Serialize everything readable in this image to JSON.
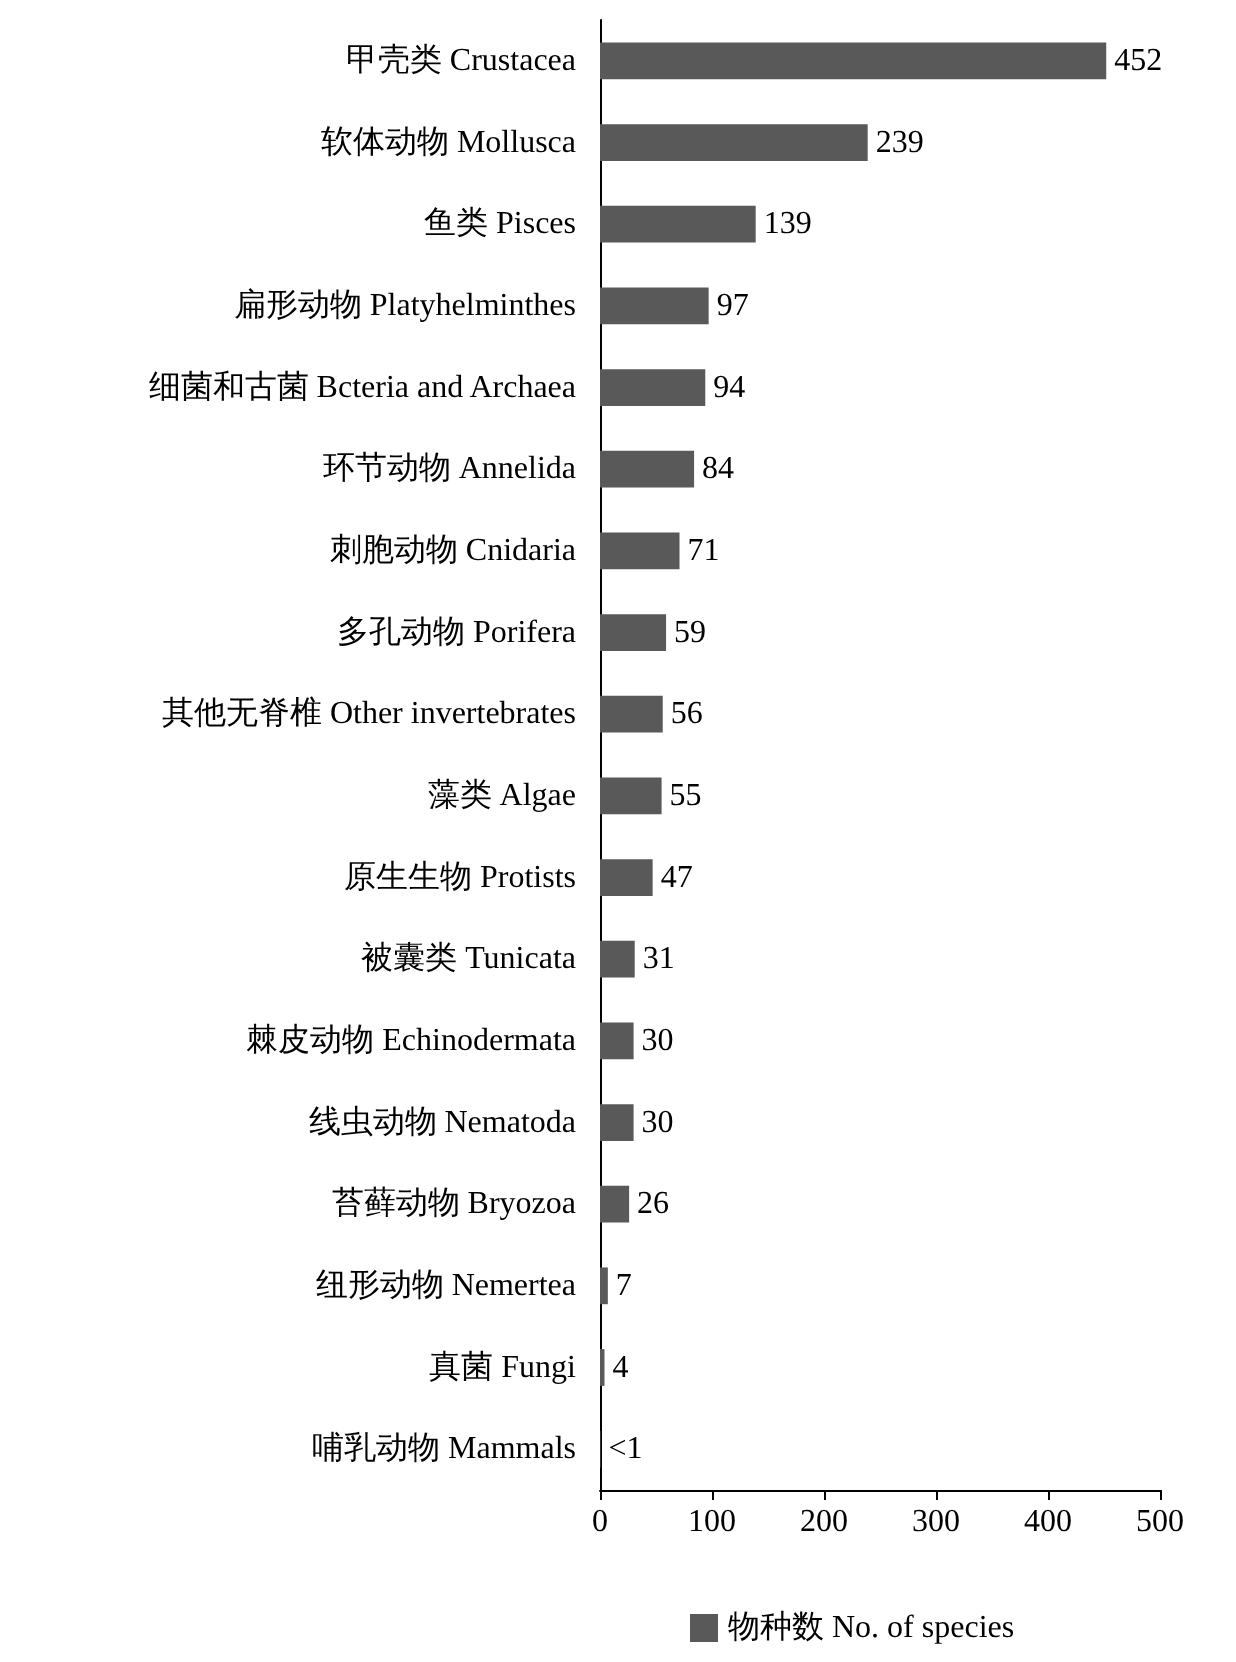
{
  "chart_data": {
    "type": "bar",
    "orientation": "horizontal",
    "categories": [
      "甲壳类 Crustacea",
      "软体动物 Mollusca",
      "鱼类 Pisces",
      "扁形动物 Platyhelminthes",
      "细菌和古菌 Bcteria and Archaea",
      "环节动物 Annelida",
      "刺胞动物 Cnidaria",
      "多孔动物 Porifera",
      "其他无脊椎 Other invertebrates",
      "藻类 Algae",
      "原生生物 Protists",
      "被囊类 Tunicata",
      "棘皮动物 Echinodermata",
      "线虫动物 Nematoda",
      "苔藓动物 Bryozoa",
      "纽形动物 Nemertea",
      "真菌 Fungi",
      "哺乳动物 Mammals"
    ],
    "series": [
      {
        "name": "物种数 No. of species",
        "color": "#595959",
        "values": [
          452,
          239,
          139,
          97,
          94,
          84,
          71,
          59,
          56,
          55,
          47,
          31,
          30,
          30,
          26,
          7,
          4,
          0.5
        ],
        "value_labels": [
          "452",
          "239",
          "139",
          "97",
          "94",
          "84",
          "71",
          "59",
          "56",
          "55",
          "47",
          "31",
          "30",
          "30",
          "26",
          "7",
          "4",
          "<1"
        ]
      }
    ],
    "xlim": [
      0,
      500
    ],
    "xticks": [
      0,
      100,
      200,
      300,
      400,
      500
    ],
    "grid": false,
    "legend": "bottom"
  }
}
